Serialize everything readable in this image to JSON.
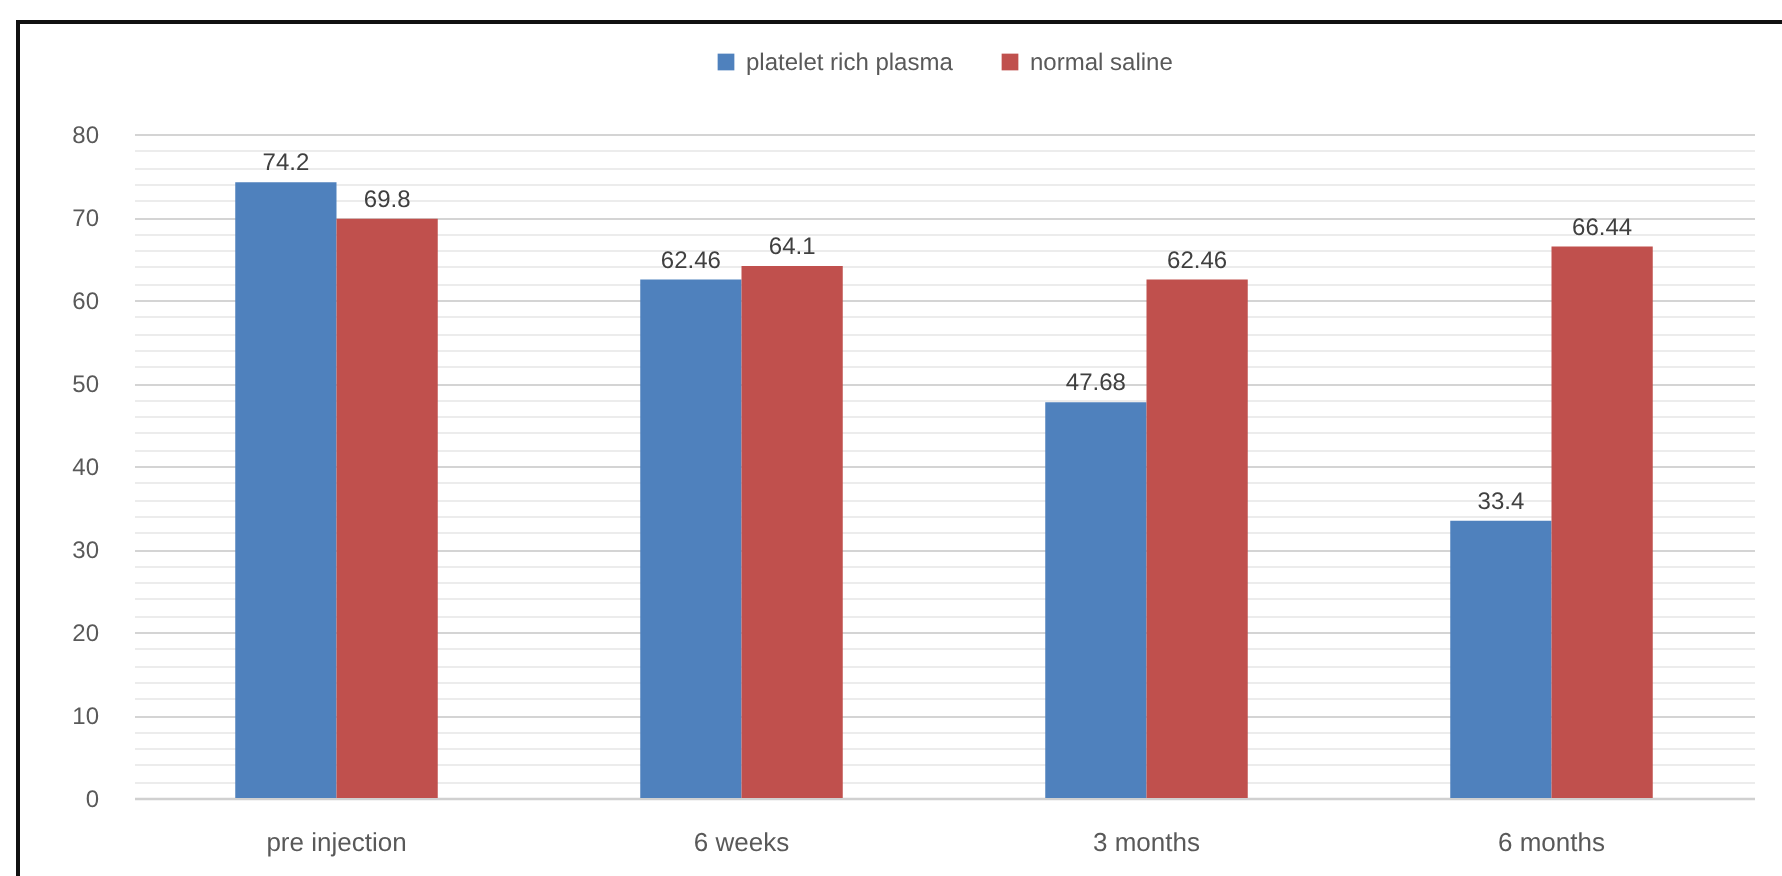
{
  "chart_data": {
    "type": "bar",
    "categories": [
      "pre injection",
      "6 weeks",
      "3 months",
      "6 months"
    ],
    "series": [
      {
        "name": "platelet rich plasma",
        "color": "#4f81bd",
        "values": [
          74.2,
          62.46,
          47.68,
          33.4
        ]
      },
      {
        "name": "normal saline",
        "color": "#c0504d",
        "values": [
          69.8,
          64.1,
          62.46,
          66.44
        ]
      }
    ],
    "ylim": [
      0,
      80
    ],
    "yticks": [
      0,
      {
        "value": 2,
        "label": null
      },
      {
        "value": 4,
        "label": null
      },
      {
        "value": 6,
        "label": null
      },
      {
        "value": 8,
        "label": null
      },
      10,
      {
        "value": 12,
        "label": null
      },
      {
        "value": 14,
        "label": null
      },
      {
        "value": 16,
        "label": null
      },
      {
        "value": 18,
        "label": null
      },
      20,
      {
        "value": 22,
        "label": null
      },
      {
        "value": 24,
        "label": null
      },
      {
        "value": 26,
        "label": null
      },
      {
        "value": 28,
        "label": null
      },
      30,
      {
        "value": 32,
        "label": null
      },
      {
        "value": 34,
        "label": null
      },
      {
        "value": 36,
        "label": null
      },
      {
        "value": 38,
        "label": null
      },
      40,
      {
        "value": 42,
        "label": null
      },
      {
        "value": 44,
        "label": null
      },
      {
        "value": 46,
        "label": null
      },
      {
        "value": 48,
        "label": null
      },
      50,
      {
        "value": 52,
        "label": null
      },
      {
        "value": 54,
        "label": null
      },
      {
        "value": 56,
        "label": null
      },
      {
        "value": 58,
        "label": null
      },
      60,
      {
        "value": 62,
        "label": null
      },
      {
        "value": 64,
        "label": null
      },
      {
        "value": 66,
        "label": null
      },
      {
        "value": 68,
        "label": null
      },
      70,
      {
        "value": 72,
        "label": null
      },
      {
        "value": 74,
        "label": null
      },
      {
        "value": 76,
        "label": null
      },
      {
        "value": 78,
        "label": null
      },
      80
    ],
    "grid": "y",
    "legend": "top",
    "data_labels": true
  }
}
